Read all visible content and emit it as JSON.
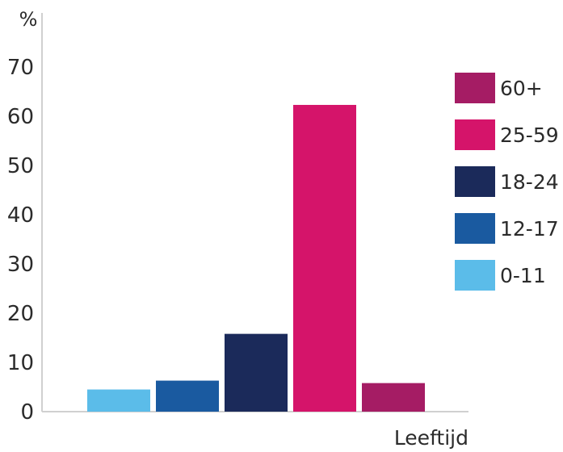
{
  "chart_data": {
    "type": "bar",
    "categories": [
      "0-11",
      "12-17",
      "18-24",
      "25-59",
      "60+"
    ],
    "values": [
      4.5,
      6.3,
      15.8,
      62.3,
      5.8
    ],
    "colors": [
      "#5bbce9",
      "#1a5aa0",
      "#1b2a5a",
      "#d5146a",
      "#a51c64"
    ],
    "ylabel": "%",
    "xlabel": "Leeftijd",
    "ylim": [
      0,
      80
    ],
    "yticks": [
      0,
      10,
      20,
      30,
      40,
      50,
      60,
      70
    ],
    "grid": false,
    "legend": {
      "placement": "right",
      "entries": [
        {
          "label": "60+",
          "color": "#a51c64"
        },
        {
          "label": "25-59",
          "color": "#d5146a"
        },
        {
          "label": "18-24",
          "color": "#1b2a5a"
        },
        {
          "label": "12-17",
          "color": "#1a5aa0"
        },
        {
          "label": "0-11",
          "color": "#5bbce9"
        }
      ]
    }
  }
}
